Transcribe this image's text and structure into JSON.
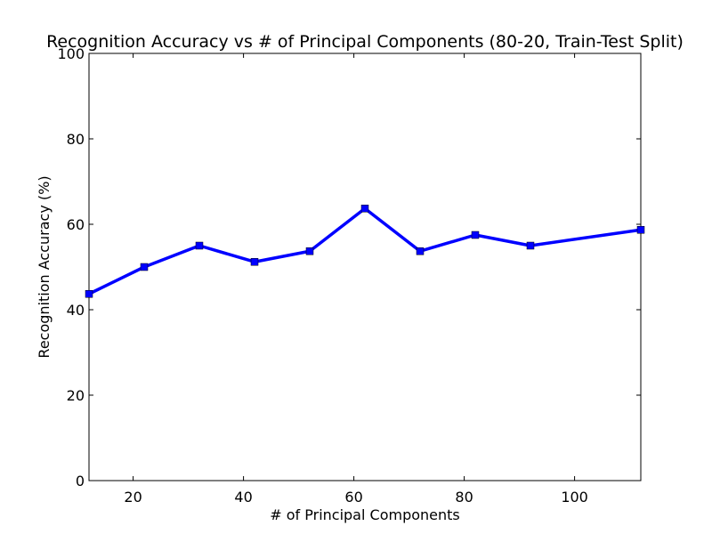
{
  "chart_data": {
    "type": "line",
    "title": "Recognition Accuracy vs # of Principal Components (80-20, Train-Test Split)",
    "xlabel": "# of Principal Components",
    "ylabel": "Recognition Accuracy (%)",
    "xlim": [
      12,
      112
    ],
    "ylim": [
      0,
      100
    ],
    "xticks": [
      20,
      40,
      60,
      80,
      100
    ],
    "yticks": [
      0,
      20,
      40,
      60,
      80,
      100
    ],
    "grid": false,
    "legend": "none",
    "series": [
      {
        "color": "#0000ff",
        "marker": "square",
        "x": [
          12,
          22,
          32,
          42,
          52,
          62,
          72,
          82,
          92,
          112
        ],
        "y": [
          43.7,
          50.0,
          55.0,
          51.2,
          53.7,
          63.7,
          53.7,
          57.5,
          55.0,
          58.7
        ]
      }
    ]
  }
}
